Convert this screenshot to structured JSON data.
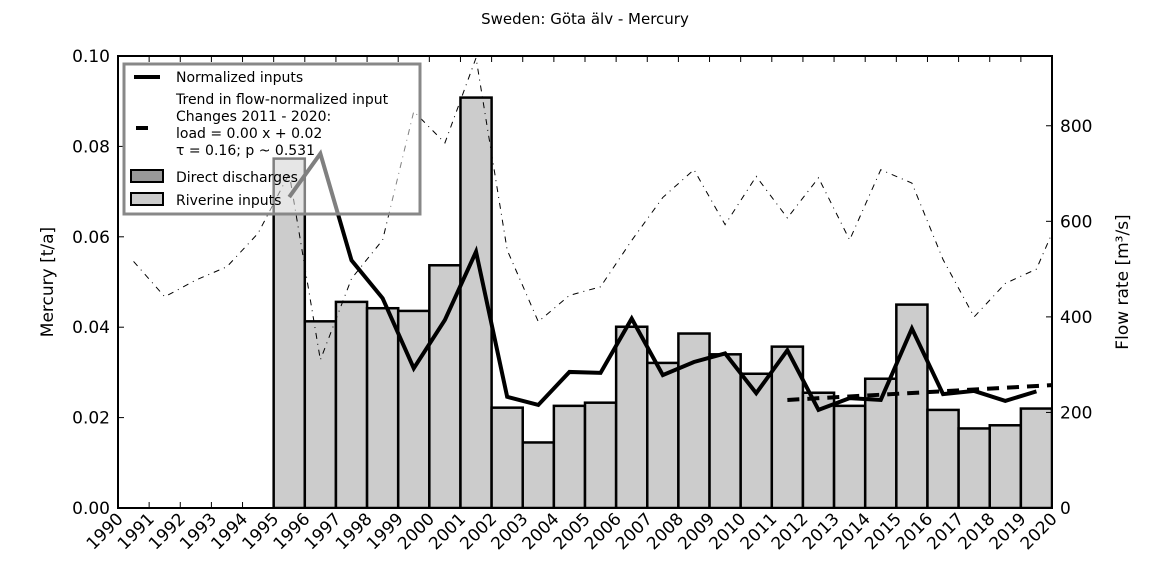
{
  "chart_data": {
    "type": "bar",
    "title": "Sweden: Göta älv - Mercury",
    "ylabel": "Mercury [t/a]",
    "ylabel_right": "Flow rate [m³/s]",
    "xlim": [
      1990,
      2020
    ],
    "ylim": [
      0,
      0.1
    ],
    "ylim_right": [
      0,
      946
    ],
    "grid": false,
    "legend_placement": "top-left",
    "x_ticks": [
      "1990",
      "1991",
      "1992",
      "1993",
      "1994",
      "1995",
      "1996",
      "1997",
      "1998",
      "1999",
      "2000",
      "2001",
      "2002",
      "2003",
      "2004",
      "2005",
      "2006",
      "2007",
      "2008",
      "2009",
      "2010",
      "2011",
      "2012",
      "2013",
      "2014",
      "2015",
      "2016",
      "2017",
      "2018",
      "2019",
      "2020"
    ],
    "y_ticks": [
      "0.00",
      "0.02",
      "0.04",
      "0.06",
      "0.08",
      "0.10"
    ],
    "y_ticks_right": [
      "0",
      "200",
      "400",
      "600",
      "800"
    ],
    "legend": {
      "normalized": "Normalized inputs",
      "trend_line1": "Trend in flow-normalized input",
      "trend_line2": "Changes 2011 - 2020:",
      "trend_line3": "load =  0.00 x +  0.02",
      "trend_line4": "τ =  0.16; p ~ 0.531",
      "direct": "Direct discharges",
      "riverine": "Riverine inputs"
    },
    "colors": {
      "riverine": "#cccccc",
      "direct": "#999999",
      "line": "#000000"
    },
    "years": [
      1995,
      1996,
      1997,
      1998,
      1999,
      2000,
      2001,
      2002,
      2003,
      2004,
      2005,
      2006,
      2007,
      2008,
      2009,
      2010,
      2011,
      2012,
      2013,
      2014,
      2015,
      2016,
      2017,
      2018,
      2019
    ],
    "series": [
      {
        "name": "Riverine inputs",
        "type": "bar",
        "values": [
          0.0773,
          0.0413,
          0.0456,
          0.0442,
          0.0436,
          0.0537,
          0.0908,
          0.0222,
          0.0145,
          0.0226,
          0.0233,
          0.0401,
          0.0321,
          0.0386,
          0.034,
          0.0297,
          0.0357,
          0.0255,
          0.0226,
          0.0286,
          0.045,
          0.0217,
          0.0176,
          0.0183,
          0.022
        ]
      },
      {
        "name": "Direct discharges",
        "type": "bar",
        "values": [
          0,
          0,
          0,
          0,
          0,
          0,
          0,
          0,
          0,
          0,
          0,
          0,
          0,
          0,
          0,
          0,
          0,
          0,
          0,
          0,
          0,
          0,
          0,
          0,
          0
        ]
      },
      {
        "name": "Normalized inputs",
        "type": "line",
        "values": [
          0.0688,
          0.0784,
          0.0548,
          0.0464,
          0.0309,
          0.0416,
          0.0567,
          0.0246,
          0.0228,
          0.0301,
          0.0299,
          0.0419,
          0.0294,
          0.0323,
          0.0342,
          0.0254,
          0.0349,
          0.0217,
          0.0243,
          0.0239,
          0.0397,
          0.0252,
          0.0259,
          0.0237,
          0.0258
        ]
      }
    ],
    "trend": {
      "x": [
        2011,
        2020
      ],
      "values": [
        0.0239,
        0.0272
      ]
    },
    "flow": {
      "axis": "right",
      "years": [
        1990,
        1991,
        1992,
        1993,
        1994,
        1995,
        1996,
        1997,
        1998,
        1999,
        2000,
        2001,
        2002,
        2003,
        2004,
        2005,
        2006,
        2007,
        2008,
        2009,
        2010,
        2011,
        2012,
        2013,
        2014,
        2015,
        2016,
        2017,
        2018,
        2019,
        2020
      ],
      "values": [
        516,
        442,
        477,
        505,
        575,
        700,
        310,
        480,
        561,
        830,
        764,
        942,
        540,
        390,
        445,
        463,
        560,
        650,
        708,
        593,
        694,
        607,
        691,
        561,
        708,
        680,
        520,
        400,
        470,
        500,
        650
      ]
    }
  }
}
